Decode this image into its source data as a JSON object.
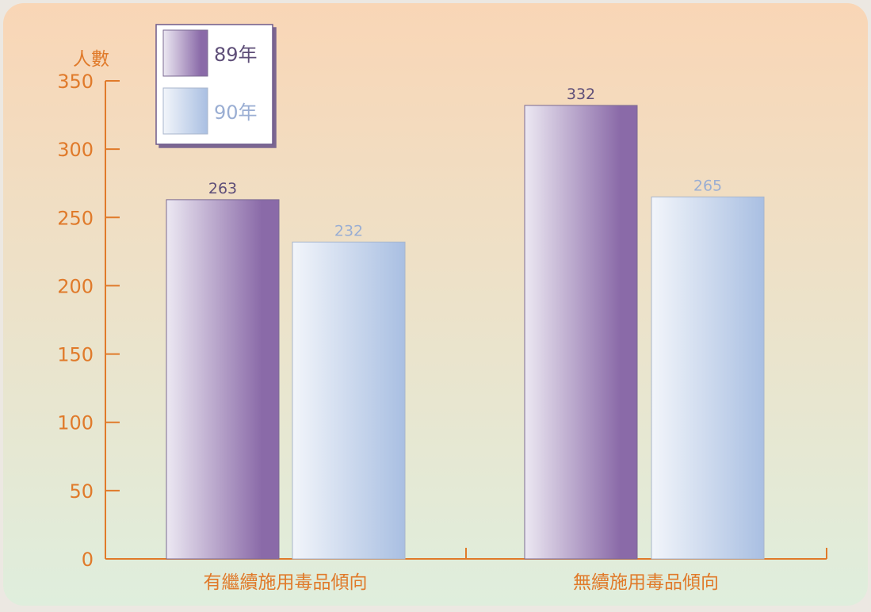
{
  "colors": {
    "axis": "#e07a2a",
    "tick_text": "#e07a2a",
    "label_text": "#e07a2a",
    "series_89_dark": "#8a6aa8",
    "series_89_light": "#ece8f2",
    "series_90_dark": "#a9bfe2",
    "series_90_light": "#f2f5fa",
    "value_89": "#5e4e78",
    "value_90": "#9aaed3",
    "background_top": "#f9d6b6",
    "background_bottom": "#dfeedd"
  },
  "chart_data": {
    "type": "bar",
    "ylabel": "人數",
    "xlabel": "",
    "ylim": [
      0,
      350
    ],
    "yticks": [
      0,
      50,
      100,
      150,
      200,
      250,
      300,
      350
    ],
    "categories": [
      "有繼續施用毒品傾向",
      "無續施用毒品傾向"
    ],
    "series": [
      {
        "name": "89年",
        "values": [
          263,
          332
        ]
      },
      {
        "name": "90年",
        "values": [
          232,
          265
        ]
      }
    ],
    "data_labels": [
      [
        "263",
        "332"
      ],
      [
        "232",
        "265"
      ]
    ],
    "legend_position": "top-left",
    "grid": false
  }
}
